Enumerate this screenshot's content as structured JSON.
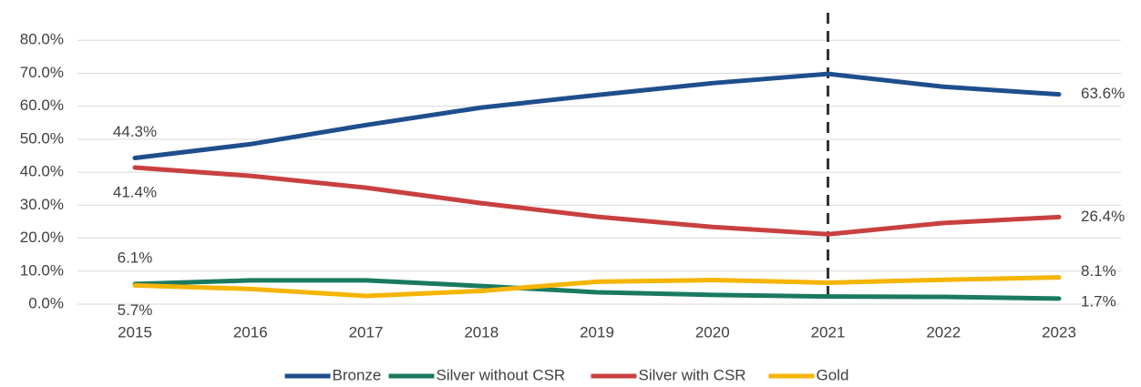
{
  "chart_data": {
    "type": "line",
    "categories": [
      "2015",
      "2016",
      "2017",
      "2018",
      "2019",
      "2020",
      "2021",
      "2022",
      "2023"
    ],
    "series": [
      {
        "name": "Bronze",
        "color": "#1f4e8c",
        "values": [
          44.3,
          48.5,
          54.3,
          59.6,
          63.4,
          67.0,
          69.8,
          65.9,
          63.6
        ],
        "value_labels": [
          "44.3%",
          null,
          null,
          null,
          null,
          null,
          null,
          null,
          "63.6%"
        ]
      },
      {
        "name": "Silver without CSR",
        "color": "#1a7a60",
        "values": [
          6.1,
          7.2,
          7.2,
          5.5,
          3.6,
          2.8,
          2.3,
          2.2,
          1.7
        ],
        "value_labels": [
          "6.1%",
          null,
          null,
          null,
          null,
          null,
          null,
          null,
          "1.7%"
        ]
      },
      {
        "name": "Silver with CSR",
        "color": "#c94040",
        "values": [
          41.4,
          38.9,
          35.3,
          30.6,
          26.5,
          23.4,
          21.2,
          24.6,
          26.4
        ],
        "value_labels": [
          "41.4%",
          null,
          null,
          null,
          null,
          null,
          null,
          null,
          "26.4%"
        ]
      },
      {
        "name": "Gold",
        "color": "#f5b400",
        "values": [
          5.7,
          4.6,
          2.5,
          4.0,
          6.8,
          7.3,
          6.5,
          7.4,
          8.1
        ],
        "value_labels": [
          "5.7%",
          null,
          null,
          null,
          null,
          null,
          null,
          null,
          "8.1%"
        ]
      }
    ],
    "ylim": [
      0,
      90
    ],
    "yticks": [
      {
        "value": 0,
        "label": "0.0%"
      },
      {
        "value": 10,
        "label": "10.0%"
      },
      {
        "value": 20,
        "label": "20.0%"
      },
      {
        "value": 30,
        "label": "30.0%"
      },
      {
        "value": 40,
        "label": "40.0%"
      },
      {
        "value": 50,
        "label": "50.0%"
      },
      {
        "value": 60,
        "label": "60.0%"
      },
      {
        "value": 70,
        "label": "70.0%"
      },
      {
        "value": 80,
        "label": "80.0%"
      }
    ],
    "grid": true,
    "vline": "2021",
    "legend": "bottom"
  }
}
